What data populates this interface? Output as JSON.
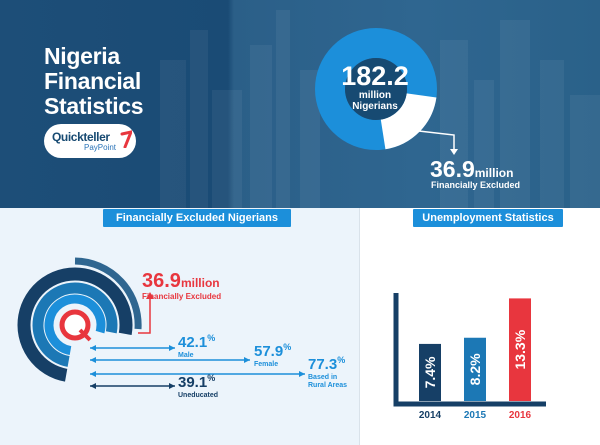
{
  "header": {
    "title_lines": [
      "Nigeria",
      "Financial",
      "Statistics"
    ],
    "logo": {
      "brand": "Quickteller",
      "sub": "PayPoint",
      "icon": "quickteller-mark-icon"
    }
  },
  "population": {
    "value": "182.2",
    "unit": "million",
    "label": "Nigerians",
    "excluded_value": "36.9",
    "excluded_unit": "million",
    "excluded_label": "Financially Excluded"
  },
  "excluded_section": {
    "title": "Financially Excluded Nigerians",
    "headline": {
      "value": "36.9",
      "unit": "million",
      "label": "Financially Excluded"
    },
    "stats": [
      {
        "value": "42.1",
        "unit": "%",
        "label_lines": [
          "Male"
        ],
        "percent": 42.1,
        "color": "#1c8fda"
      },
      {
        "value": "57.9",
        "unit": "%",
        "label_lines": [
          "Female"
        ],
        "percent": 57.9,
        "color": "#1c8fda"
      },
      {
        "value": "77.3",
        "unit": "%",
        "label_lines": [
          "Based in",
          "Rural Areas"
        ],
        "percent": 77.3,
        "color": "#1c8fda"
      },
      {
        "value": "39.1",
        "unit": "%",
        "label_lines": [
          "Uneducated"
        ],
        "percent": 39.1,
        "color": "#163f66"
      }
    ]
  },
  "unemployment_section": {
    "title": "Unemployment Statistics"
  },
  "chart_data": [
    {
      "type": "pie",
      "labels": [
        "Nigerians",
        "Financially Excluded"
      ],
      "values": [
        182.2,
        36.9
      ],
      "colors": [
        "#1c8fda",
        "#ffffff"
      ]
    },
    {
      "type": "bar",
      "categories": [
        "2014",
        "2015",
        "2016"
      ],
      "values": [
        7.4,
        8.2,
        13.3
      ],
      "value_labels": [
        "7.4%",
        "8.2%",
        "13.3%"
      ],
      "colors": [
        "#163f66",
        "#1c78b5",
        "#e8363e"
      ],
      "category_colors": [
        "#163f66",
        "#1c78b5",
        "#e8363e"
      ],
      "ylim": [
        0,
        14
      ]
    }
  ],
  "colors": {
    "navy": "#163f66",
    "blue": "#1c8fda",
    "mid_blue": "#1c78b5",
    "red": "#e8363e",
    "panel": "#ecf4fb"
  }
}
